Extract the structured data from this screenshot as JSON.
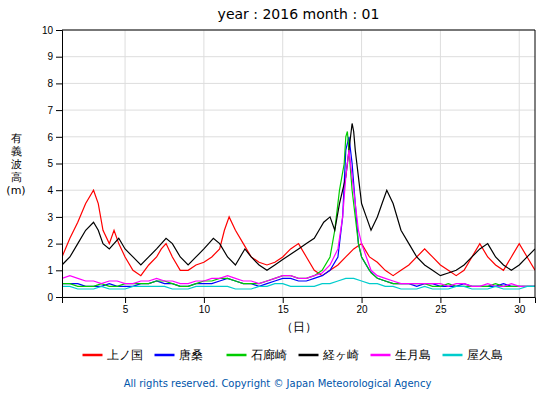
{
  "chart_data": {
    "type": "line",
    "title": "year : 2016   month : 01",
    "x_label": "（日）",
    "y_label": "有\n義\n波\n高\n(m)",
    "annotations": [
      "All rights reserved. Copyright © Japan Meteorological Agency"
    ],
    "xlim": [
      1,
      31
    ],
    "ylim": [
      0,
      10
    ],
    "xticks": [
      5,
      10,
      15,
      20,
      25,
      30
    ],
    "yticks": [
      0,
      1,
      2,
      3,
      4,
      5,
      6,
      7,
      8,
      9,
      10
    ],
    "grid": true,
    "legend": "bottom",
    "series": [
      {
        "name": "上ノ国",
        "color": "#FF0000",
        "x": [
          1,
          1.5,
          2,
          2.5,
          3,
          3.3,
          3.6,
          4,
          4.3,
          4.6,
          5,
          5.5,
          6,
          6.5,
          7,
          7.3,
          7.6,
          8,
          8.5,
          9,
          9.5,
          10,
          10.5,
          11,
          11.3,
          11.6,
          12,
          12.5,
          13,
          13.5,
          14,
          14.5,
          15,
          15.5,
          16,
          16.5,
          17,
          17.5,
          18,
          18.5,
          19,
          19.5,
          20,
          20.5,
          21,
          21.5,
          22,
          22.5,
          23,
          23.5,
          24,
          24.5,
          25,
          25.5,
          26,
          26.5,
          27,
          27.5,
          28,
          28.5,
          29,
          29.5,
          30,
          30.5,
          31
        ],
        "values": [
          1.5,
          2.2,
          2.8,
          3.5,
          4.0,
          3.5,
          2.5,
          2.0,
          2.5,
          2.0,
          1.5,
          1.0,
          0.8,
          1.2,
          1.5,
          1.8,
          2.0,
          1.5,
          1.0,
          1.0,
          1.2,
          1.3,
          1.5,
          1.8,
          2.5,
          3.0,
          2.5,
          2.0,
          1.5,
          1.3,
          1.2,
          1.3,
          1.5,
          1.8,
          2.0,
          1.5,
          1.0,
          0.8,
          1.0,
          1.2,
          1.5,
          1.8,
          2.0,
          1.5,
          1.3,
          1.0,
          0.8,
          1.0,
          1.2,
          1.5,
          1.8,
          1.5,
          1.2,
          1.0,
          0.8,
          1.0,
          1.5,
          2.0,
          1.5,
          1.2,
          1.0,
          1.5,
          2.0,
          1.5,
          1.0
        ]
      },
      {
        "name": "唐桑",
        "color": "#0000FF",
        "x": [
          1,
          1.5,
          2,
          2.5,
          3,
          3.5,
          4,
          4.5,
          5,
          5.5,
          6,
          6.5,
          7,
          7.5,
          8,
          8.5,
          9,
          9.5,
          10,
          10.5,
          11,
          11.5,
          12,
          12.5,
          13,
          13.5,
          14,
          14.5,
          15,
          15.5,
          16,
          16.5,
          17,
          17.5,
          18,
          18.5,
          18.8,
          19.0,
          19.2,
          19.4,
          19.6,
          19.8,
          20,
          20.5,
          21,
          21.5,
          22,
          22.5,
          23,
          23.5,
          24,
          24.5,
          25,
          25.5,
          26,
          26.5,
          27,
          27.5,
          28,
          28.5,
          29,
          29.5,
          30,
          30.5,
          31
        ],
        "values": [
          0.5,
          0.5,
          0.5,
          0.4,
          0.4,
          0.4,
          0.5,
          0.4,
          0.4,
          0.4,
          0.5,
          0.5,
          0.6,
          0.5,
          0.5,
          0.4,
          0.4,
          0.5,
          0.5,
          0.5,
          0.6,
          0.7,
          0.6,
          0.5,
          0.5,
          0.4,
          0.5,
          0.6,
          0.7,
          0.7,
          0.6,
          0.6,
          0.7,
          0.8,
          1.0,
          1.5,
          3.0,
          5.5,
          6.0,
          5.0,
          3.5,
          2.0,
          1.5,
          1.0,
          0.7,
          0.6,
          0.5,
          0.5,
          0.5,
          0.4,
          0.5,
          0.5,
          0.4,
          0.4,
          0.4,
          0.5,
          0.4,
          0.4,
          0.4,
          0.4,
          0.5,
          0.4,
          0.4,
          0.4,
          0.4
        ]
      },
      {
        "name": "石廊崎",
        "color": "#00CC00",
        "x": [
          1,
          1.5,
          2,
          2.5,
          3,
          3.5,
          4,
          4.5,
          5,
          5.5,
          6,
          6.5,
          7,
          7.5,
          8,
          8.5,
          9,
          9.5,
          10,
          10.5,
          11,
          11.5,
          12,
          12.5,
          13,
          13.5,
          14,
          14.5,
          15,
          15.5,
          16,
          16.5,
          17,
          17.5,
          18,
          18.3,
          18.6,
          18.9,
          19.0,
          19.1,
          19.2,
          19.4,
          19.6,
          19.8,
          20.0,
          20.3,
          20.6,
          21,
          21.5,
          22,
          22.5,
          23,
          23.5,
          24,
          24.5,
          25,
          25.5,
          26,
          26.5,
          27,
          27.5,
          28,
          28.5,
          29,
          29.5,
          30,
          30.5,
          31
        ],
        "values": [
          0.5,
          0.5,
          0.4,
          0.4,
          0.4,
          0.5,
          0.4,
          0.4,
          0.5,
          0.5,
          0.5,
          0.5,
          0.6,
          0.6,
          0.5,
          0.4,
          0.4,
          0.5,
          0.6,
          0.6,
          0.7,
          0.7,
          0.6,
          0.5,
          0.5,
          0.5,
          0.6,
          0.7,
          0.8,
          0.8,
          0.7,
          0.7,
          0.8,
          1.0,
          1.5,
          2.5,
          4.0,
          5.0,
          6.0,
          6.2,
          5.5,
          4.0,
          3.0,
          2.0,
          1.5,
          1.2,
          0.9,
          0.7,
          0.6,
          0.5,
          0.5,
          0.5,
          0.5,
          0.5,
          0.4,
          0.4,
          0.5,
          0.4,
          0.4,
          0.4,
          0.4,
          0.4,
          0.5,
          0.4,
          0.4,
          0.4,
          0.4,
          0.4
        ]
      },
      {
        "name": "経ヶ崎",
        "color": "#000000",
        "x": [
          1,
          1.5,
          2,
          2.5,
          3,
          3.3,
          3.6,
          4,
          4.3,
          4.6,
          5,
          5.5,
          6,
          6.5,
          7,
          7.3,
          7.6,
          8,
          8.5,
          9,
          9.5,
          10,
          10.3,
          10.6,
          11,
          11.5,
          12,
          12.3,
          12.6,
          13,
          13.5,
          14,
          14.5,
          15,
          15.5,
          16,
          16.5,
          17,
          17.3,
          17.6,
          18,
          18.3,
          18.6,
          18.8,
          19.0,
          19.1,
          19.2,
          19.3,
          19.4,
          19.5,
          19.6,
          19.7,
          19.8,
          19.9,
          20,
          20.3,
          20.6,
          21,
          21.3,
          21.6,
          22,
          22.5,
          23,
          23.5,
          24,
          24.5,
          25,
          25.5,
          26,
          26.5,
          27,
          27.5,
          28,
          28.5,
          29,
          29.5,
          30,
          30.5,
          31
        ],
        "values": [
          1.2,
          1.5,
          2.0,
          2.5,
          2.8,
          2.5,
          2.0,
          1.8,
          2.0,
          2.2,
          1.8,
          1.5,
          1.2,
          1.5,
          1.8,
          2.0,
          2.2,
          2.0,
          1.5,
          1.2,
          1.5,
          1.8,
          2.0,
          2.2,
          2.0,
          1.5,
          1.2,
          1.5,
          1.8,
          1.5,
          1.2,
          1.0,
          1.2,
          1.4,
          1.6,
          1.8,
          2.0,
          2.2,
          2.5,
          2.8,
          3.0,
          2.5,
          3.5,
          4.0,
          4.5,
          5.0,
          5.5,
          6.0,
          6.5,
          6.2,
          5.5,
          5.0,
          4.5,
          4.0,
          3.5,
          3.0,
          2.5,
          3.0,
          3.5,
          4.0,
          3.5,
          2.5,
          2.0,
          1.5,
          1.2,
          1.0,
          0.8,
          0.9,
          1.0,
          1.2,
          1.5,
          1.8,
          2.0,
          1.5,
          1.2,
          1.0,
          1.2,
          1.5,
          1.8
        ]
      },
      {
        "name": "生月島",
        "color": "#FF00FF",
        "x": [
          1,
          1.5,
          2,
          2.5,
          3,
          3.5,
          4,
          4.5,
          5,
          5.5,
          6,
          6.5,
          7,
          7.5,
          8,
          8.5,
          9,
          9.5,
          10,
          10.5,
          11,
          11.5,
          12,
          12.5,
          13,
          13.5,
          14,
          14.5,
          15,
          15.5,
          16,
          16.5,
          17,
          17.5,
          18,
          18.5,
          18.8,
          19.0,
          19.2,
          19.4,
          19.6,
          19.8,
          20,
          20.3,
          20.6,
          21,
          21.5,
          22,
          22.5,
          23,
          23.5,
          24,
          24.5,
          25,
          25.5,
          26,
          26.5,
          27,
          27.5,
          28,
          28.5,
          29,
          29.5,
          30,
          30.5,
          31
        ],
        "values": [
          0.7,
          0.8,
          0.7,
          0.6,
          0.6,
          0.5,
          0.6,
          0.6,
          0.5,
          0.5,
          0.6,
          0.6,
          0.7,
          0.6,
          0.6,
          0.5,
          0.5,
          0.6,
          0.6,
          0.7,
          0.7,
          0.8,
          0.7,
          0.6,
          0.6,
          0.5,
          0.6,
          0.7,
          0.8,
          0.8,
          0.7,
          0.7,
          0.8,
          0.9,
          1.2,
          1.8,
          3.0,
          4.5,
          5.5,
          4.5,
          3.5,
          2.5,
          2.0,
          1.5,
          1.0,
          0.8,
          0.7,
          0.6,
          0.5,
          0.5,
          0.5,
          0.5,
          0.5,
          0.5,
          0.4,
          0.5,
          0.5,
          0.4,
          0.4,
          0.5,
          0.4,
          0.4,
          0.5,
          0.4,
          0.4,
          0.4
        ]
      },
      {
        "name": "屋久島",
        "color": "#00CCCC",
        "x": [
          1,
          1.5,
          2,
          2.5,
          3,
          3.5,
          4,
          4.5,
          5,
          5.5,
          6,
          6.5,
          7,
          7.5,
          8,
          8.5,
          9,
          9.5,
          10,
          10.5,
          11,
          11.5,
          12,
          12.5,
          13,
          13.5,
          14,
          14.5,
          15,
          15.5,
          16,
          16.5,
          17,
          17.5,
          18,
          18.5,
          19,
          19.5,
          20,
          20.5,
          21,
          21.5,
          22,
          22.5,
          23,
          23.5,
          24,
          24.5,
          25,
          25.5,
          26,
          26.5,
          27,
          27.5,
          28,
          28.5,
          29,
          29.5,
          30,
          30.5,
          31
        ],
        "values": [
          0.4,
          0.4,
          0.3,
          0.3,
          0.3,
          0.4,
          0.3,
          0.3,
          0.3,
          0.4,
          0.4,
          0.4,
          0.4,
          0.4,
          0.3,
          0.3,
          0.3,
          0.4,
          0.4,
          0.4,
          0.4,
          0.4,
          0.3,
          0.3,
          0.3,
          0.4,
          0.4,
          0.5,
          0.5,
          0.4,
          0.4,
          0.4,
          0.4,
          0.5,
          0.5,
          0.6,
          0.7,
          0.7,
          0.6,
          0.5,
          0.5,
          0.4,
          0.4,
          0.3,
          0.3,
          0.3,
          0.4,
          0.3,
          0.3,
          0.3,
          0.4,
          0.4,
          0.3,
          0.3,
          0.3,
          0.4,
          0.3,
          0.3,
          0.3,
          0.4,
          0.4
        ]
      }
    ]
  }
}
